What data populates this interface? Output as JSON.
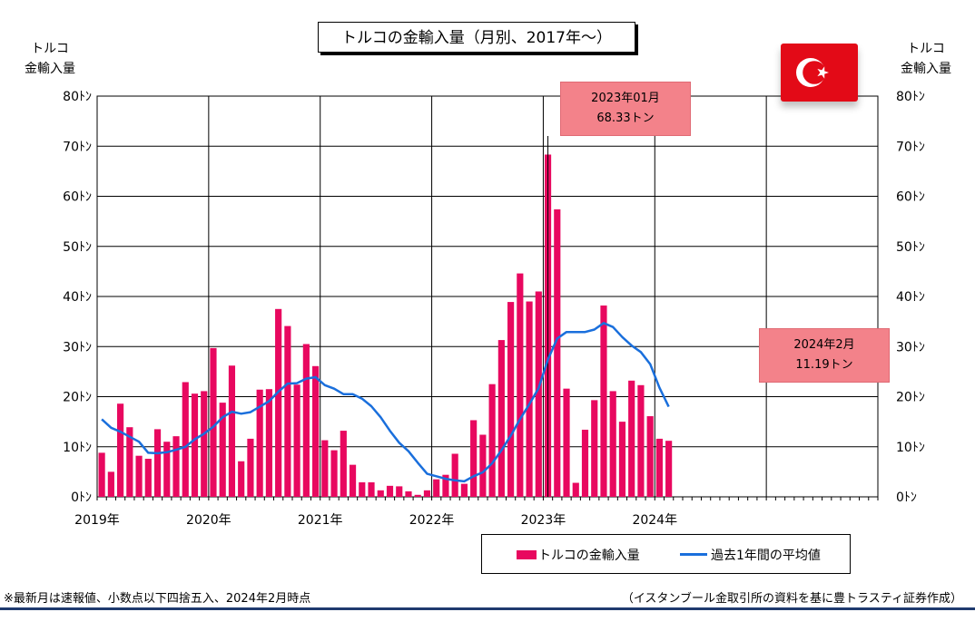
{
  "title": "トルコの金輸入量（月別、2017年～）",
  "ylabel_left": [
    "トルコ",
    "金輸入量"
  ],
  "ylabel_right": [
    "トルコ",
    "金輸入量"
  ],
  "callout_peak": [
    "2023年01月",
    "68.33トン"
  ],
  "callout_latest": [
    "2024年2月",
    "11.19トン"
  ],
  "legend": {
    "bars": "トルコの金輸入量",
    "line": "過去1年間の平均値"
  },
  "footnote": "※最新月は速報値、小数点以下四捨五入、2024年2月時点",
  "source": "（イスタンブール金取引所の資料を基に豊トラスティ証券作成）",
  "colors": {
    "bars": "#e8085f",
    "line": "#1a6fdc",
    "callout": "#f3828a",
    "flag": "#e30a17",
    "rule": "#1f3a6e"
  },
  "flag_icon": "turkey-flag-icon",
  "chart_data": {
    "type": "bar",
    "y_unit": "トン",
    "ylim": [
      0,
      80
    ],
    "yticks": [
      0,
      10,
      20,
      30,
      40,
      50,
      60,
      70,
      80
    ],
    "ytick_labels": [
      "0ﾄﾝ",
      "10ﾄﾝ",
      "20ﾄﾝ",
      "30ﾄﾝ",
      "40ﾄﾝ",
      "50ﾄﾝ",
      "60ﾄﾝ",
      "70ﾄﾝ",
      "80ﾄﾝ"
    ],
    "year_labels": [
      "2019年",
      "2020年",
      "2021年",
      "2022年",
      "2023年",
      "2024年"
    ],
    "grid": true,
    "start_month": "2019-01",
    "end_month": "2025-12",
    "series": [
      {
        "name": "トルコの金輸入量",
        "type": "bar",
        "values": [
          8.8,
          5.0,
          18.6,
          13.9,
          8.2,
          7.6,
          13.5,
          11.0,
          12.1,
          22.9,
          20.6,
          21.1,
          29.7,
          18.8,
          26.2,
          7.1,
          11.6,
          21.4,
          21.5,
          37.5,
          34.1,
          22.4,
          30.5,
          26.1,
          11.3,
          9.3,
          13.2,
          6.4,
          2.9,
          2.9,
          1.3,
          2.2,
          2.1,
          1.1,
          0.4,
          1.3,
          3.5,
          4.4,
          8.6,
          2.6,
          15.3,
          12.4,
          22.5,
          31.3,
          38.9,
          44.6,
          39.0,
          41.0,
          68.33,
          57.4,
          21.6,
          2.8,
          13.4,
          19.3,
          38.2,
          21.1,
          15.0,
          23.2,
          22.3,
          16.1,
          11.6,
          11.19
        ]
      },
      {
        "name": "過去1年間の平均値",
        "type": "line",
        "values": [
          15.5,
          13.8,
          13.0,
          12.0,
          11.0,
          8.8,
          8.7,
          8.9,
          9.4,
          10.0,
          11.5,
          12.6,
          14.0,
          15.9,
          17.0,
          16.6,
          16.9,
          18.0,
          19.1,
          21.0,
          22.6,
          22.7,
          23.6,
          23.9,
          22.3,
          21.6,
          20.5,
          20.5,
          19.6,
          18.1,
          15.9,
          13.2,
          10.8,
          9.1,
          6.8,
          4.6,
          4.1,
          3.6,
          3.3,
          3.1,
          4.1,
          4.9,
          6.7,
          9.3,
          12.2,
          15.5,
          18.5,
          21.7,
          27.4,
          31.6,
          32.9,
          32.9,
          32.9,
          33.4,
          34.7,
          33.9,
          31.9,
          30.2,
          28.9,
          26.5,
          21.8,
          18.0
        ]
      }
    ]
  }
}
